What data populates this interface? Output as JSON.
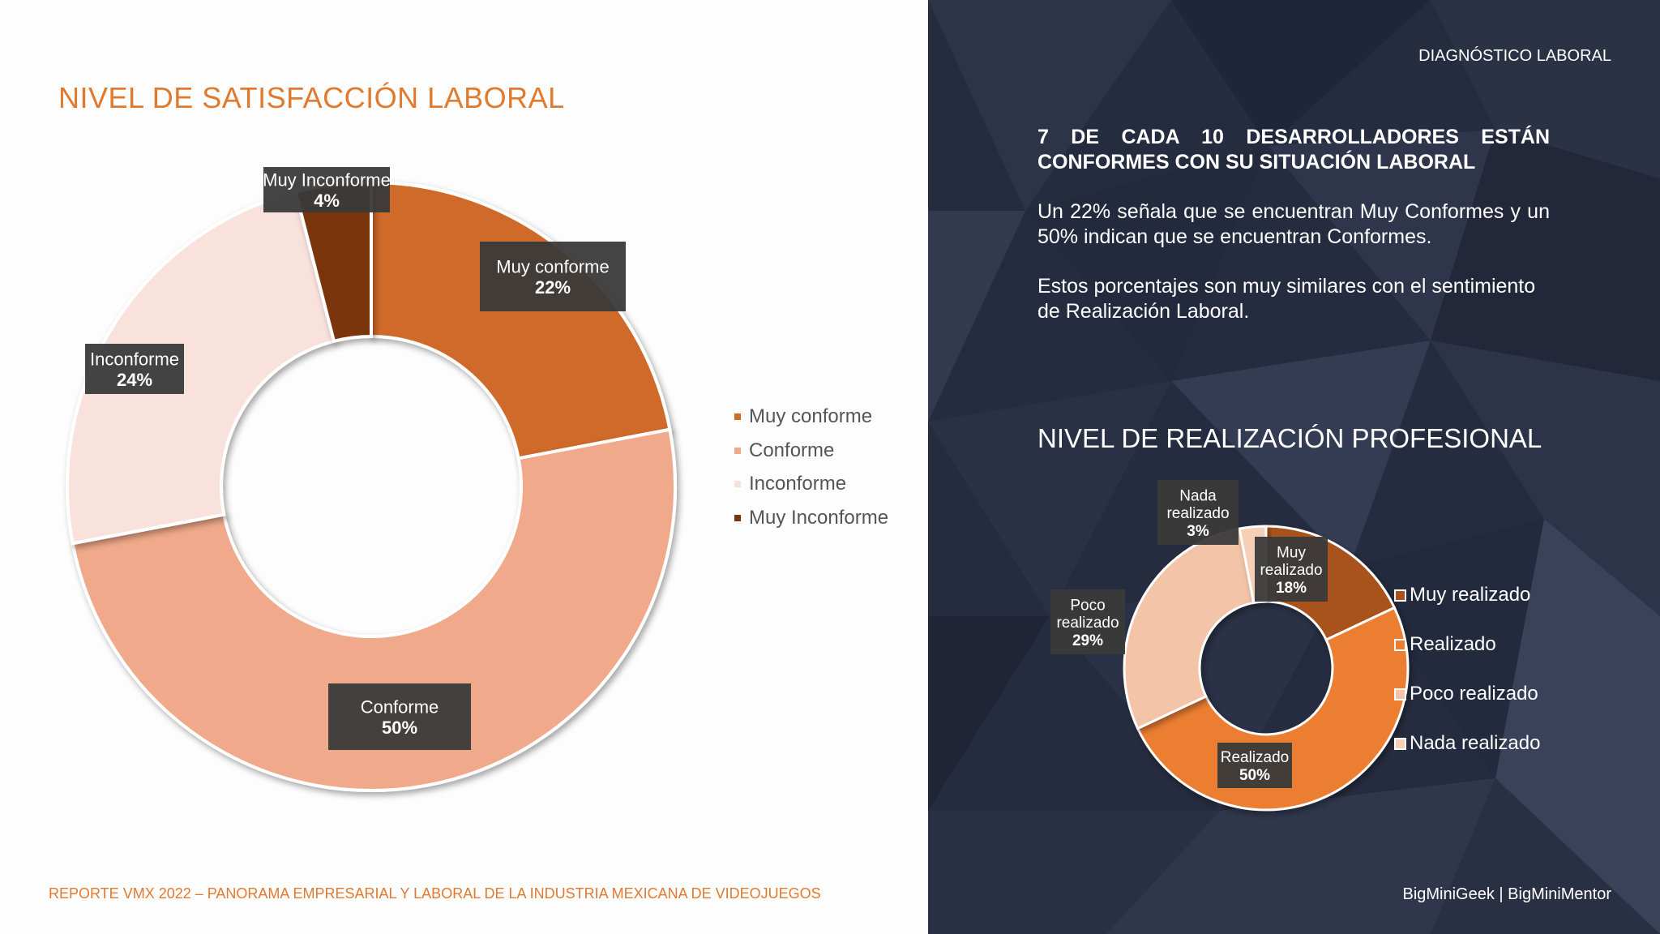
{
  "left_title": "NIVEL DE SATISFACCIÓN LABORAL",
  "footer_left": "REPORTE VMX 2022 – PANORAMA EMPRESARIAL Y LABORAL DE LA INDUSTRIA MEXICANA DE VIDEOJUEGOS",
  "right_tag": "DIAGNÓSTICO LABORAL",
  "headline_line1": "7 DE CADA 10 DESARROLLADORES ESTÁN",
  "headline_line2": "CONFORMES CON SU SITUACIÓN LABORAL",
  "paragraph1": "Un 22% señala que se encuentran Muy Conformes y un 50% indican que se encuentran Conformes.",
  "paragraph2": "Estos porcentajes son muy similares con el sentimiento de Realización Laboral.",
  "right_chart_title": "NIVEL DE REALIZACIÓN PROFESIONAL",
  "footer_right": "BigMiniGeek | BigMiniMentor",
  "chart_data": [
    {
      "type": "pie",
      "variant": "donut",
      "title": "NIVEL DE SATISFACCIÓN LABORAL",
      "legend_position": "right",
      "slices": [
        {
          "name": "Muy conforme",
          "label": "Muy conforme",
          "value": 22,
          "value_label": "22%",
          "color": "#d06a2b"
        },
        {
          "name": "Conforme",
          "label": "Conforme",
          "value": 50,
          "value_label": "50%",
          "color": "#f0a98a"
        },
        {
          "name": "Inconforme",
          "label": "Inconforme",
          "value": 24,
          "value_label": "24%",
          "color": "#fae2dc"
        },
        {
          "name": "Muy Inconforme",
          "label": "Muy Inconforme",
          "value": 4,
          "value_label": "4%",
          "color": "#7a3510"
        }
      ]
    },
    {
      "type": "pie",
      "variant": "donut",
      "title": "NIVEL DE REALIZACIÓN PROFESIONAL",
      "legend_position": "right",
      "slices": [
        {
          "name": "Muy realizado",
          "label": "Muy realizado",
          "value": 18,
          "value_label": "18%",
          "color": "#a9521f"
        },
        {
          "name": "Realizado",
          "label": "Realizado",
          "value": 50,
          "value_label": "50%",
          "color": "#ec7e33"
        },
        {
          "name": "Poco realizado",
          "label": "Poco realizado",
          "value": 29,
          "value_label": "29%",
          "color": "#f4c4a8"
        },
        {
          "name": "Nada realizado",
          "label": "Nada realizado",
          "value": 3,
          "value_label": "3%",
          "color": "#f6d0b6"
        }
      ]
    }
  ]
}
